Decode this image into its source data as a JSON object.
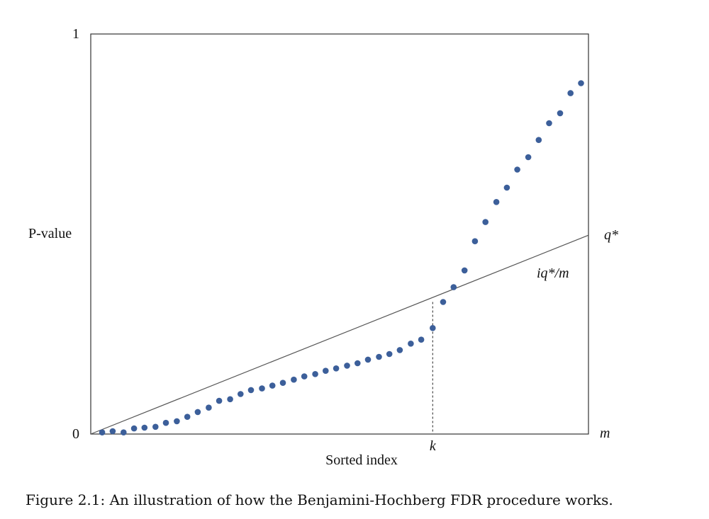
{
  "chart_data": {
    "type": "scatter",
    "ylabel": "P-value",
    "xlabel": "Sorted index",
    "y_ticks": [
      "0",
      "1"
    ],
    "x_end_label": "m",
    "xlim": [
      0,
      1
    ],
    "ylim": [
      0,
      1
    ],
    "threshold_line": {
      "label": "iq*/m",
      "end_label": "q*",
      "from": [
        0,
        0
      ],
      "to": [
        1,
        0.497
      ]
    },
    "marker": {
      "label": "k",
      "x": 0.687,
      "y": 0.33
    },
    "point_color": "#3c5f9a",
    "line_color": "#555555",
    "points": {
      "x": [
        0.023,
        0.044,
        0.066,
        0.087,
        0.108,
        0.13,
        0.151,
        0.173,
        0.194,
        0.215,
        0.237,
        0.258,
        0.28,
        0.301,
        0.322,
        0.344,
        0.365,
        0.386,
        0.408,
        0.429,
        0.451,
        0.472,
        0.493,
        0.515,
        0.536,
        0.557,
        0.579,
        0.6,
        0.621,
        0.643,
        0.664,
        0.687,
        0.708,
        0.729,
        0.751,
        0.772,
        0.793,
        0.815,
        0.836,
        0.857,
        0.879,
        0.9,
        0.921,
        0.943,
        0.964,
        0.985
      ],
      "y": [
        0.004,
        0.007,
        0.004,
        0.014,
        0.016,
        0.018,
        0.028,
        0.032,
        0.043,
        0.055,
        0.066,
        0.083,
        0.087,
        0.1,
        0.11,
        0.114,
        0.121,
        0.128,
        0.136,
        0.144,
        0.15,
        0.158,
        0.164,
        0.171,
        0.177,
        0.186,
        0.193,
        0.2,
        0.21,
        0.226,
        0.236,
        0.265,
        0.33,
        0.367,
        0.409,
        0.482,
        0.53,
        0.58,
        0.616,
        0.661,
        0.692,
        0.735,
        0.777,
        0.802,
        0.852,
        0.877
      ]
    }
  },
  "caption": "Figure 2.1: An illustration of how the Benjamini-Hochberg FDR procedure works."
}
